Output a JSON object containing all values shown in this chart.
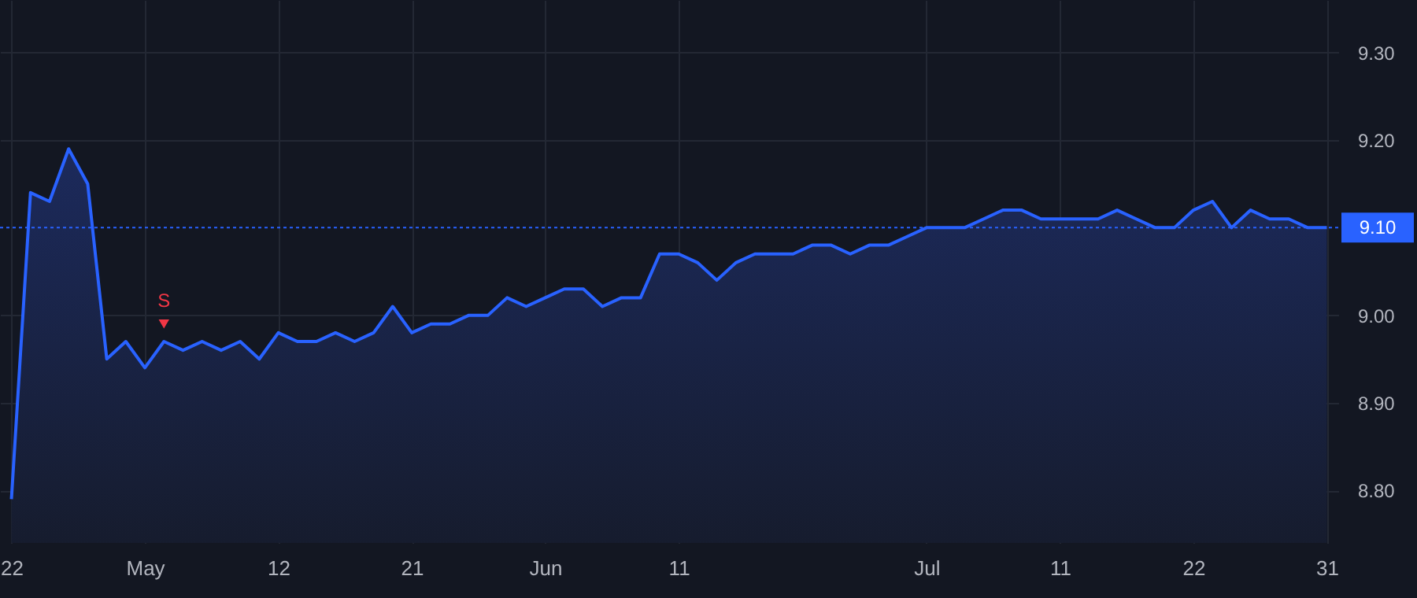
{
  "chart_data": {
    "type": "area",
    "categories": [
      "22",
      null,
      null,
      null,
      null,
      null,
      null,
      "May",
      null,
      null,
      null,
      null,
      null,
      null,
      "12",
      null,
      null,
      null,
      null,
      null,
      null,
      "21",
      null,
      null,
      null,
      null,
      null,
      null,
      "Jun",
      null,
      null,
      null,
      null,
      null,
      null,
      "11",
      null,
      null,
      null,
      null,
      null,
      null,
      null,
      null,
      null,
      null,
      null,
      null,
      "Jul",
      null,
      null,
      null,
      null,
      null,
      null,
      "11",
      null,
      null,
      null,
      null,
      null,
      null,
      "22",
      null,
      null,
      null,
      null,
      null,
      null,
      "31"
    ],
    "series": [
      {
        "color": "#2962ff",
        "values": [
          8.79,
          9.14,
          9.13,
          9.19,
          9.15,
          8.95,
          8.97,
          8.94,
          8.97,
          8.96,
          8.97,
          8.96,
          8.97,
          8.95,
          8.98,
          8.97,
          8.97,
          8.98,
          8.97,
          8.98,
          9.01,
          8.98,
          8.99,
          8.99,
          9.0,
          9.0,
          9.02,
          9.01,
          9.02,
          9.03,
          9.03,
          9.01,
          9.02,
          9.02,
          9.07,
          9.07,
          9.06,
          9.04,
          9.06,
          9.07,
          9.07,
          9.07,
          9.08,
          9.08,
          9.07,
          9.08,
          9.08,
          9.09,
          9.1,
          9.1,
          9.1,
          9.11,
          9.12,
          9.12,
          9.11,
          9.11,
          9.11,
          9.11,
          9.12,
          9.11,
          9.1,
          9.1,
          9.12,
          9.13,
          9.1,
          9.12,
          9.11,
          9.11,
          9.1,
          9.1
        ]
      },
      {
        "type": "scatter",
        "name": "S",
        "color": "#f23645",
        "marker": "triangle",
        "values": [
          null,
          null,
          null,
          null,
          null,
          null,
          null,
          null,
          8.99,
          null,
          null,
          null,
          null,
          null,
          null,
          null,
          null,
          null,
          null,
          null,
          null,
          null,
          null,
          null,
          null,
          null,
          null,
          null,
          null,
          null,
          null,
          null,
          null,
          null,
          null,
          null,
          null,
          null,
          null,
          null,
          null,
          null,
          null,
          null,
          null,
          null,
          null,
          null,
          null,
          null,
          null,
          null,
          null,
          null,
          null,
          null,
          null,
          null,
          null,
          null,
          null,
          null,
          null,
          null,
          null,
          null,
          null,
          null,
          null,
          null
        ]
      }
    ],
    "ylim": [
      8.74,
      9.36
    ],
    "yticks": [
      {
        "value": 8.8,
        "label": "8.80"
      },
      {
        "value": 8.9,
        "label": "8.90"
      },
      {
        "value": 9.0,
        "label": "9.00"
      },
      {
        "value": 9.2,
        "label": "9.20"
      },
      {
        "value": 9.3,
        "label": "9.30"
      }
    ],
    "ref_lines": [
      {
        "axis": "y",
        "value": 9.1,
        "label": "9.10",
        "color": "#2962ff",
        "line_style": "dotted"
      }
    ],
    "grid": true
  }
}
